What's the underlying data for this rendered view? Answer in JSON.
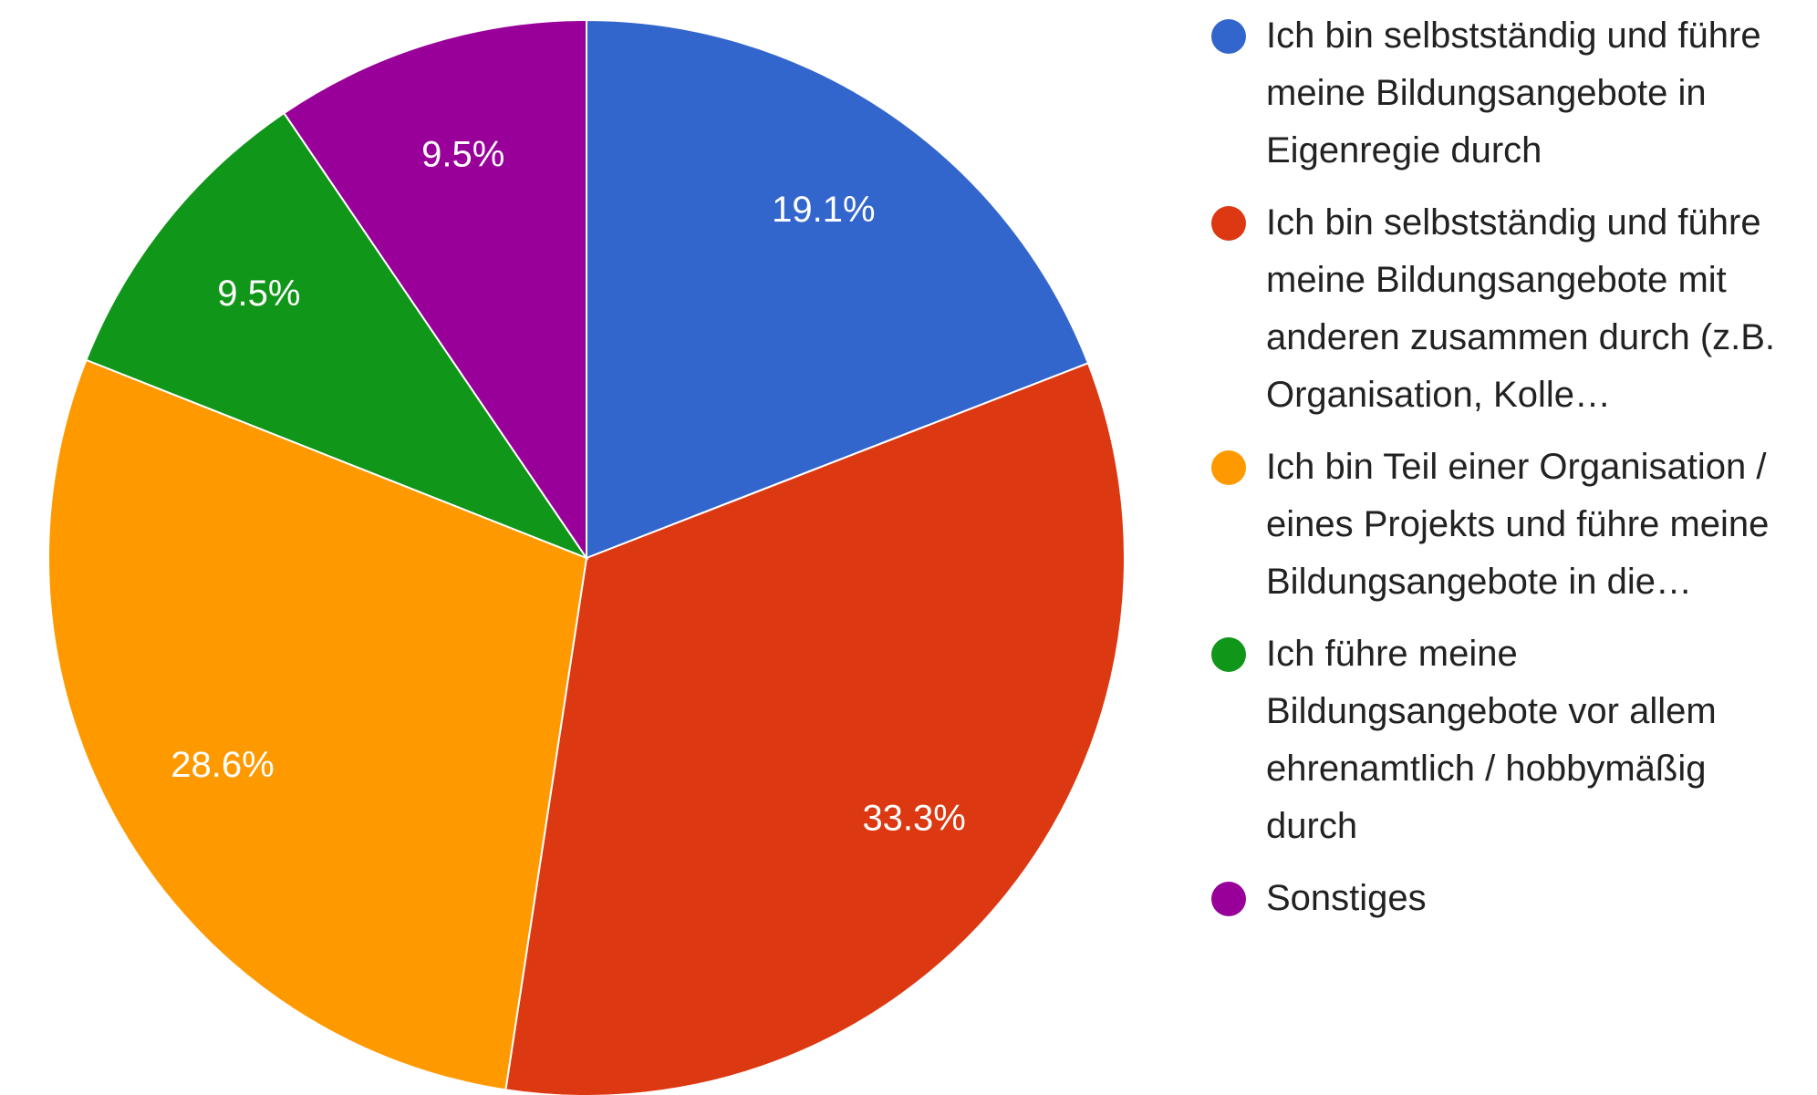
{
  "chart_data": {
    "type": "pie",
    "categories": [
      "Ich bin selbstständig und führe meine Bildungsangebote in Eigenregie durch",
      "Ich bin selbstständig und führe meine Bildungsangebote mit anderen zusammen durch (z.B. Organisation, Kolle…",
      "Ich bin Teil einer Organisation / eines Projekts und führe meine Bildungsangebote in die…",
      "Ich führe meine Bildungsangebote vor allem ehrenamtlich / hobbymäßig durch",
      "Sonstiges"
    ],
    "values": [
      19.1,
      33.3,
      28.6,
      9.5,
      9.5
    ],
    "value_labels": [
      "19.1%",
      "33.3%",
      "28.6%",
      "9.5%",
      "9.5%"
    ],
    "colors": [
      "#3366cc",
      "#dc3912",
      "#ff9900",
      "#109618",
      "#990099"
    ],
    "legend": "right"
  }
}
